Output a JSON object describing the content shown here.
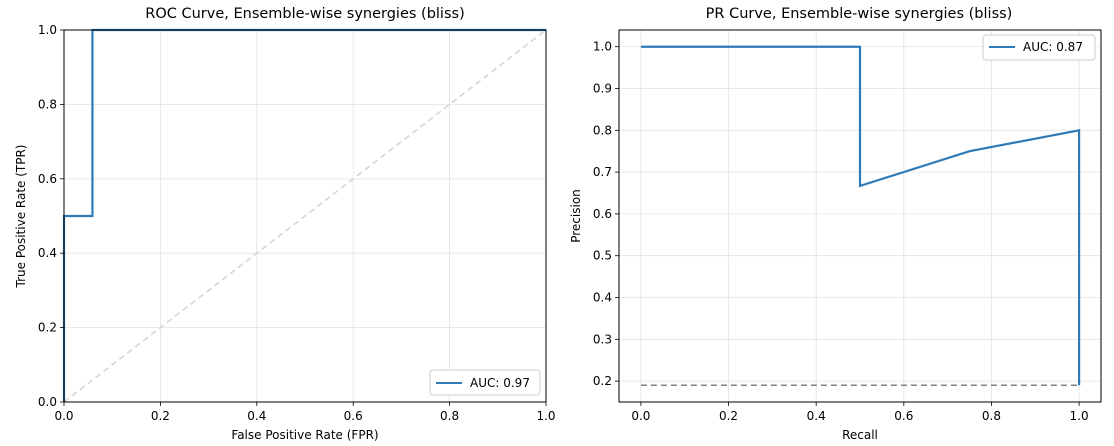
{
  "chart_data": [
    {
      "type": "line",
      "title": "ROC Curve, Ensemble-wise synergies (bliss)",
      "xlabel": "False Positive Rate (FPR)",
      "ylabel": "True Positive Rate (TPR)",
      "xlim": [
        0.0,
        1.0
      ],
      "ylim": [
        0.0,
        1.0
      ],
      "xticks": [
        "0.0",
        "0.2",
        "0.4",
        "0.6",
        "0.8",
        "1.0"
      ],
      "yticks": [
        "0.0",
        "0.2",
        "0.4",
        "0.6",
        "0.8",
        "1.0"
      ],
      "grid": true,
      "legend_position": "lower right",
      "series": [
        {
          "name": "AUC: 0.97",
          "color": "#2e7ab6",
          "dashed": false,
          "x": [
            0.0,
            0.0,
            0.059,
            0.059,
            1.0
          ],
          "y": [
            0.0,
            0.5,
            0.5,
            1.0,
            1.0
          ]
        },
        {
          "color": "#d3d3d3",
          "dashed": true,
          "x": [
            0.0,
            1.0
          ],
          "y": [
            0.0,
            1.0
          ]
        }
      ]
    },
    {
      "type": "line",
      "title": "PR Curve, Ensemble-wise synergies (bliss)",
      "xlabel": "Recall",
      "ylabel": "Precision",
      "xlim": [
        -0.05,
        1.05
      ],
      "ylim": [
        0.15,
        1.04
      ],
      "xticks": [
        "0.0",
        "0.2",
        "0.4",
        "0.6",
        "0.8",
        "1.0"
      ],
      "yticks": [
        "0.2",
        "0.3",
        "0.4",
        "0.5",
        "0.6",
        "0.7",
        "0.8",
        "0.9",
        "1.0"
      ],
      "grid": true,
      "legend_position": "upper right",
      "series": [
        {
          "name": "AUC: 0.87",
          "color": "#2e7ab6",
          "dashed": false,
          "x": [
            0.0,
            0.5,
            0.5,
            0.75,
            1.0,
            1.0
          ],
          "y": [
            1.0,
            1.0,
            0.667,
            0.75,
            0.8,
            0.19
          ]
        },
        {
          "color": "#808080",
          "dashed": true,
          "x": [
            0.0,
            1.0
          ],
          "y": [
            0.19,
            0.19
          ]
        }
      ]
    }
  ]
}
